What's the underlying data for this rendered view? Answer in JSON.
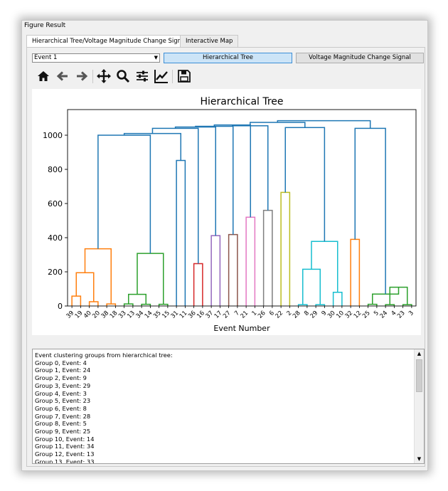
{
  "window_title": "Figure Result",
  "tabs": [
    {
      "label": "Hierarchical Tree/Voltage Magnitude Change Signal"
    },
    {
      "label": "Interactive Map"
    }
  ],
  "event_select": {
    "value": "Event 1"
  },
  "buttons": {
    "hierarchical_tree": "Hierarchical Tree",
    "voltage_signal": "Voltage Magnitude Change Signal"
  },
  "toolbar_icons": [
    "home-icon",
    "back-arrow-icon",
    "forward-arrow-icon",
    "pan-icon",
    "zoom-icon",
    "configure-subplots-icon",
    "edit-axis-icon",
    "save-icon"
  ],
  "chart_data": {
    "type": "dendrogram",
    "title": "Hierarchical Tree",
    "xlabel": "Event Number",
    "ylabel": "",
    "ylim": [
      0,
      1150
    ],
    "yticks": [
      0,
      200,
      400,
      600,
      800,
      1000
    ],
    "grid": false,
    "leaf_labels": [
      "39",
      "19",
      "40",
      "20",
      "38",
      "18",
      "33",
      "13",
      "34",
      "14",
      "35",
      "15",
      "31",
      "11",
      "36",
      "16",
      "37",
      "17",
      "27",
      "7",
      "21",
      "1",
      "26",
      "6",
      "22",
      "2",
      "28",
      "8",
      "29",
      "9",
      "30",
      "10",
      "32",
      "12",
      "25",
      "5",
      "24",
      "4",
      "23",
      "3"
    ],
    "links": [
      {
        "left": 0,
        "right": 1,
        "height": 58,
        "color": "#ff7f0e"
      },
      {
        "left": 2,
        "right": 3,
        "height": 25,
        "color": "#ff7f0e"
      },
      {
        "left": 4,
        "right": 5,
        "height": 12,
        "color": "#ff7f0e"
      },
      {
        "left": "L0",
        "right": "L1",
        "height": 195,
        "color": "#ff7f0e"
      },
      {
        "left": "L3",
        "right": "L2",
        "height": 335,
        "color": "#ff7f0e"
      },
      {
        "left": 6,
        "right": 7,
        "height": 12,
        "color": "#2ca02c"
      },
      {
        "left": 8,
        "right": 9,
        "height": 10,
        "color": "#2ca02c"
      },
      {
        "left": 10,
        "right": 11,
        "height": 10,
        "color": "#2ca02c"
      },
      {
        "left": "L5",
        "right": "L6",
        "height": 68,
        "color": "#2ca02c"
      },
      {
        "left": "L8",
        "right": "L7",
        "height": 308,
        "color": "#2ca02c"
      },
      {
        "left": 12,
        "right": 13,
        "height": 852,
        "color": "#1f77b4"
      },
      {
        "left": 14,
        "right": 15,
        "height": 248,
        "color": "#d62728"
      },
      {
        "left": 16,
        "right": 17,
        "height": 412,
        "color": "#9467bd"
      },
      {
        "left": 18,
        "right": 19,
        "height": 418,
        "color": "#8c564b"
      },
      {
        "left": 20,
        "right": 21,
        "height": 520,
        "color": "#e377c2"
      },
      {
        "left": 22,
        "right": 23,
        "height": 560,
        "color": "#7f7f7f"
      },
      {
        "left": 24,
        "right": 25,
        "height": 665,
        "color": "#bcbd22"
      },
      {
        "left": 26,
        "right": 27,
        "height": 8,
        "color": "#17becf"
      },
      {
        "left": 28,
        "right": 29,
        "height": 8,
        "color": "#17becf"
      },
      {
        "left": 30,
        "right": 31,
        "height": 80,
        "color": "#17becf"
      },
      {
        "left": "L17",
        "right": "L18",
        "height": 215,
        "color": "#17becf"
      },
      {
        "left": "L20",
        "right": "L19",
        "height": 378,
        "color": "#17becf"
      },
      {
        "left": 32,
        "right": 33,
        "height": 390,
        "color": "#ff7f0e"
      },
      {
        "left": 34,
        "right": 35,
        "height": 10,
        "color": "#2ca02c"
      },
      {
        "left": 36,
        "right": 37,
        "height": 8,
        "color": "#2ca02c"
      },
      {
        "left": 38,
        "right": 39,
        "height": 8,
        "color": "#2ca02c"
      },
      {
        "left": "L24",
        "right": "L25",
        "height": 110,
        "color": "#2ca02c"
      },
      {
        "left": "L23",
        "right": "L26",
        "height": 70,
        "color": "#2ca02c"
      },
      {
        "left": "L4",
        "right": "L9",
        "height": 1000,
        "color": "#1f77b4"
      },
      {
        "left": "L28",
        "right": "L10",
        "height": 1010,
        "color": "#1f77b4"
      },
      {
        "left": "L29",
        "right": "L11",
        "height": 1040,
        "color": "#1f77b4"
      },
      {
        "left": "L30",
        "right": "L12",
        "height": 1048,
        "color": "#1f77b4"
      },
      {
        "left": "L31",
        "right": "L13",
        "height": 1052,
        "color": "#1f77b4"
      },
      {
        "left": "L32",
        "right": "L14",
        "height": 1060,
        "color": "#1f77b4"
      },
      {
        "left": "L33",
        "right": "L15",
        "height": 1055,
        "color": "#1f77b4"
      },
      {
        "left": "L16",
        "right": "L21",
        "height": 1045,
        "color": "#1f77b4"
      },
      {
        "left": "L34",
        "right": "L35",
        "height": 1075,
        "color": "#1f77b4"
      },
      {
        "left": "L22",
        "right": "L27",
        "height": 1040,
        "color": "#1f77b4"
      },
      {
        "left": "L36",
        "right": "L37",
        "height": 1085,
        "color": "#1f77b4"
      }
    ]
  },
  "output_text": {
    "lines": [
      "Event clustering groups from hierarchical tree:",
      "Group 0, Event: 4",
      "Group 1, Event: 24",
      "Group 2, Event: 9",
      "Group 3, Event: 29",
      "Group 4, Event: 3",
      "Group 5, Event: 23",
      "Group 6, Event: 8",
      "Group 7, Event: 28",
      "Group 8, Event: 5",
      "Group 9, Event: 25",
      "Group 10, Event: 14",
      "Group 11, Event: 34",
      "Group 12, Event: 13",
      "Group 13, Event: 33"
    ]
  }
}
